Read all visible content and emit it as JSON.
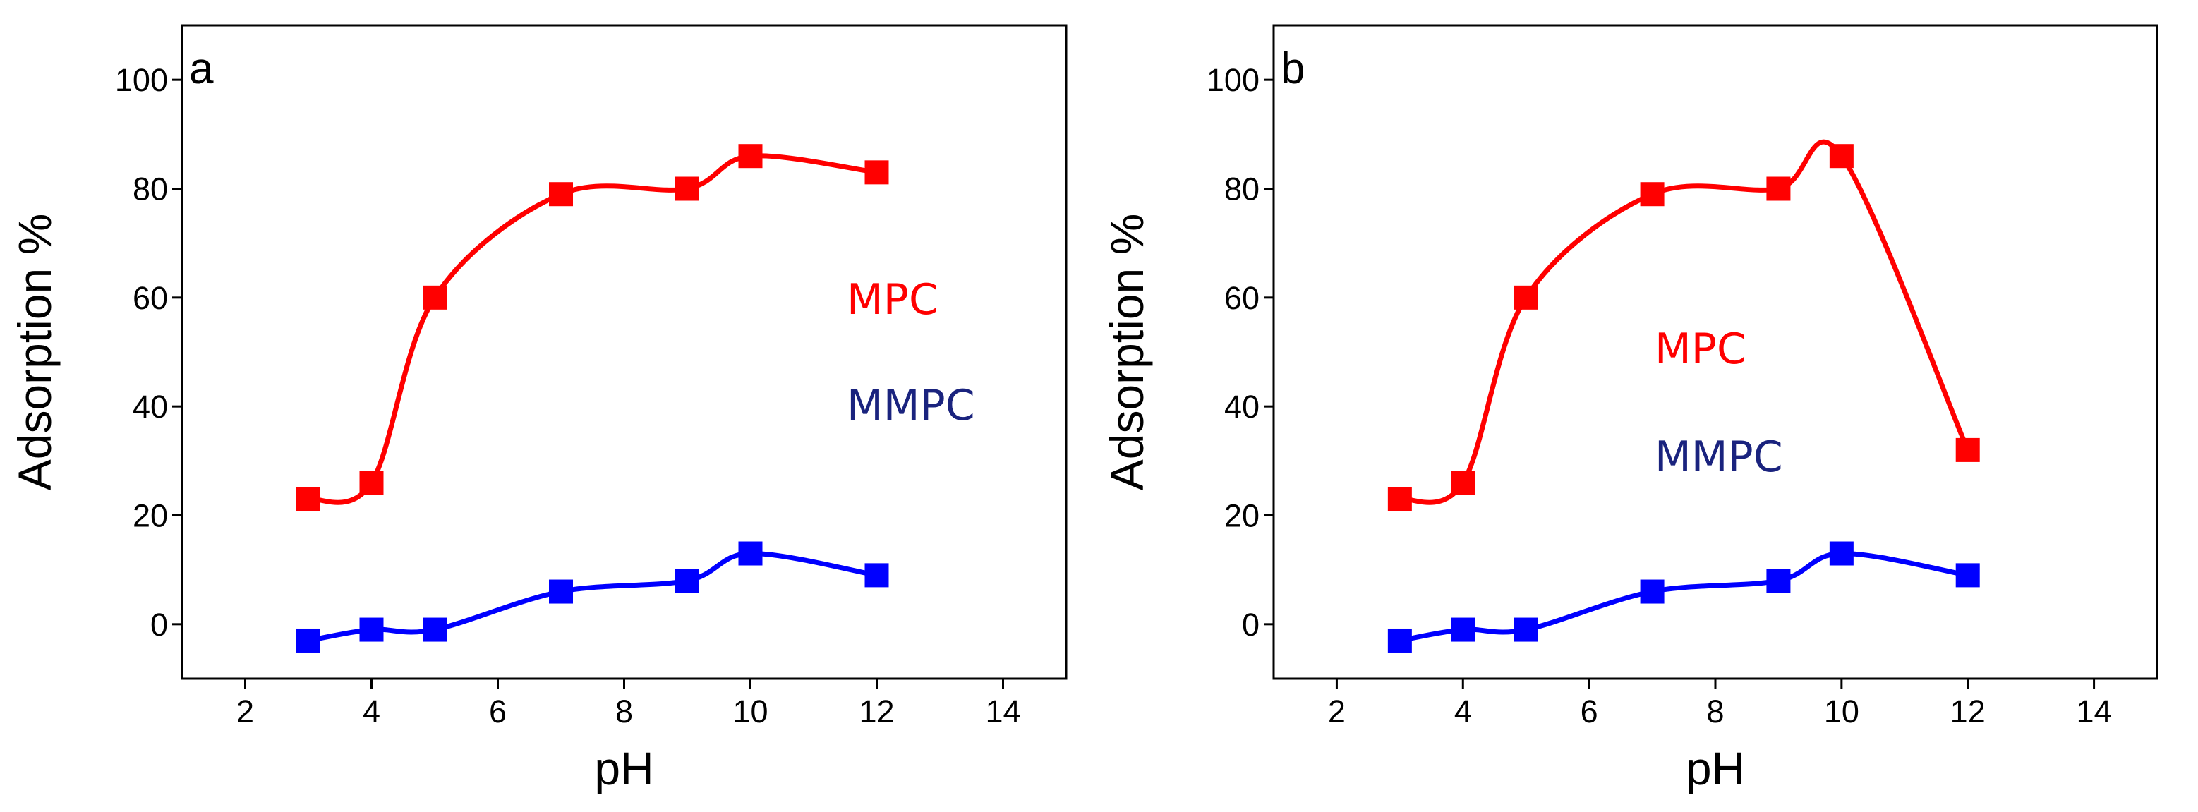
{
  "chart_data": [
    {
      "type": "line",
      "panel": "a",
      "xlabel": "pH",
      "ylabel": "Adsorption %",
      "xlim": [
        1,
        15
      ],
      "ylim": [
        -10,
        110
      ],
      "xticks": [
        2,
        4,
        6,
        8,
        10,
        12,
        14
      ],
      "yticks": [
        0,
        20,
        40,
        60,
        80,
        100
      ],
      "x": [
        3,
        4,
        5,
        7,
        9,
        10,
        12
      ],
      "series": [
        {
          "name": "MPC",
          "color": "#ff0000",
          "values": [
            23,
            26,
            60,
            79,
            80,
            86,
            83
          ]
        },
        {
          "name": "MMPC",
          "color": "#0000ff",
          "label_color": "#1a237e",
          "values": [
            -3,
            -1,
            -1,
            6,
            8,
            13,
            9
          ]
        }
      ]
    },
    {
      "type": "line",
      "panel": "b",
      "xlabel": "pH",
      "ylabel": "Adsorption %",
      "xlim": [
        1,
        15
      ],
      "ylim": [
        -10,
        110
      ],
      "xticks": [
        2,
        4,
        6,
        8,
        10,
        12,
        14
      ],
      "yticks": [
        0,
        20,
        40,
        60,
        80,
        100
      ],
      "x": [
        3,
        4,
        5,
        7,
        9,
        10,
        12
      ],
      "series": [
        {
          "name": "MPC",
          "color": "#ff0000",
          "values": [
            23,
            26,
            60,
            79,
            80,
            86,
            32
          ]
        },
        {
          "name": "MMPC",
          "color": "#0000ff",
          "label_color": "#1a237e",
          "values": [
            -3,
            -1,
            -1,
            6,
            8,
            13,
            9
          ]
        }
      ]
    }
  ]
}
